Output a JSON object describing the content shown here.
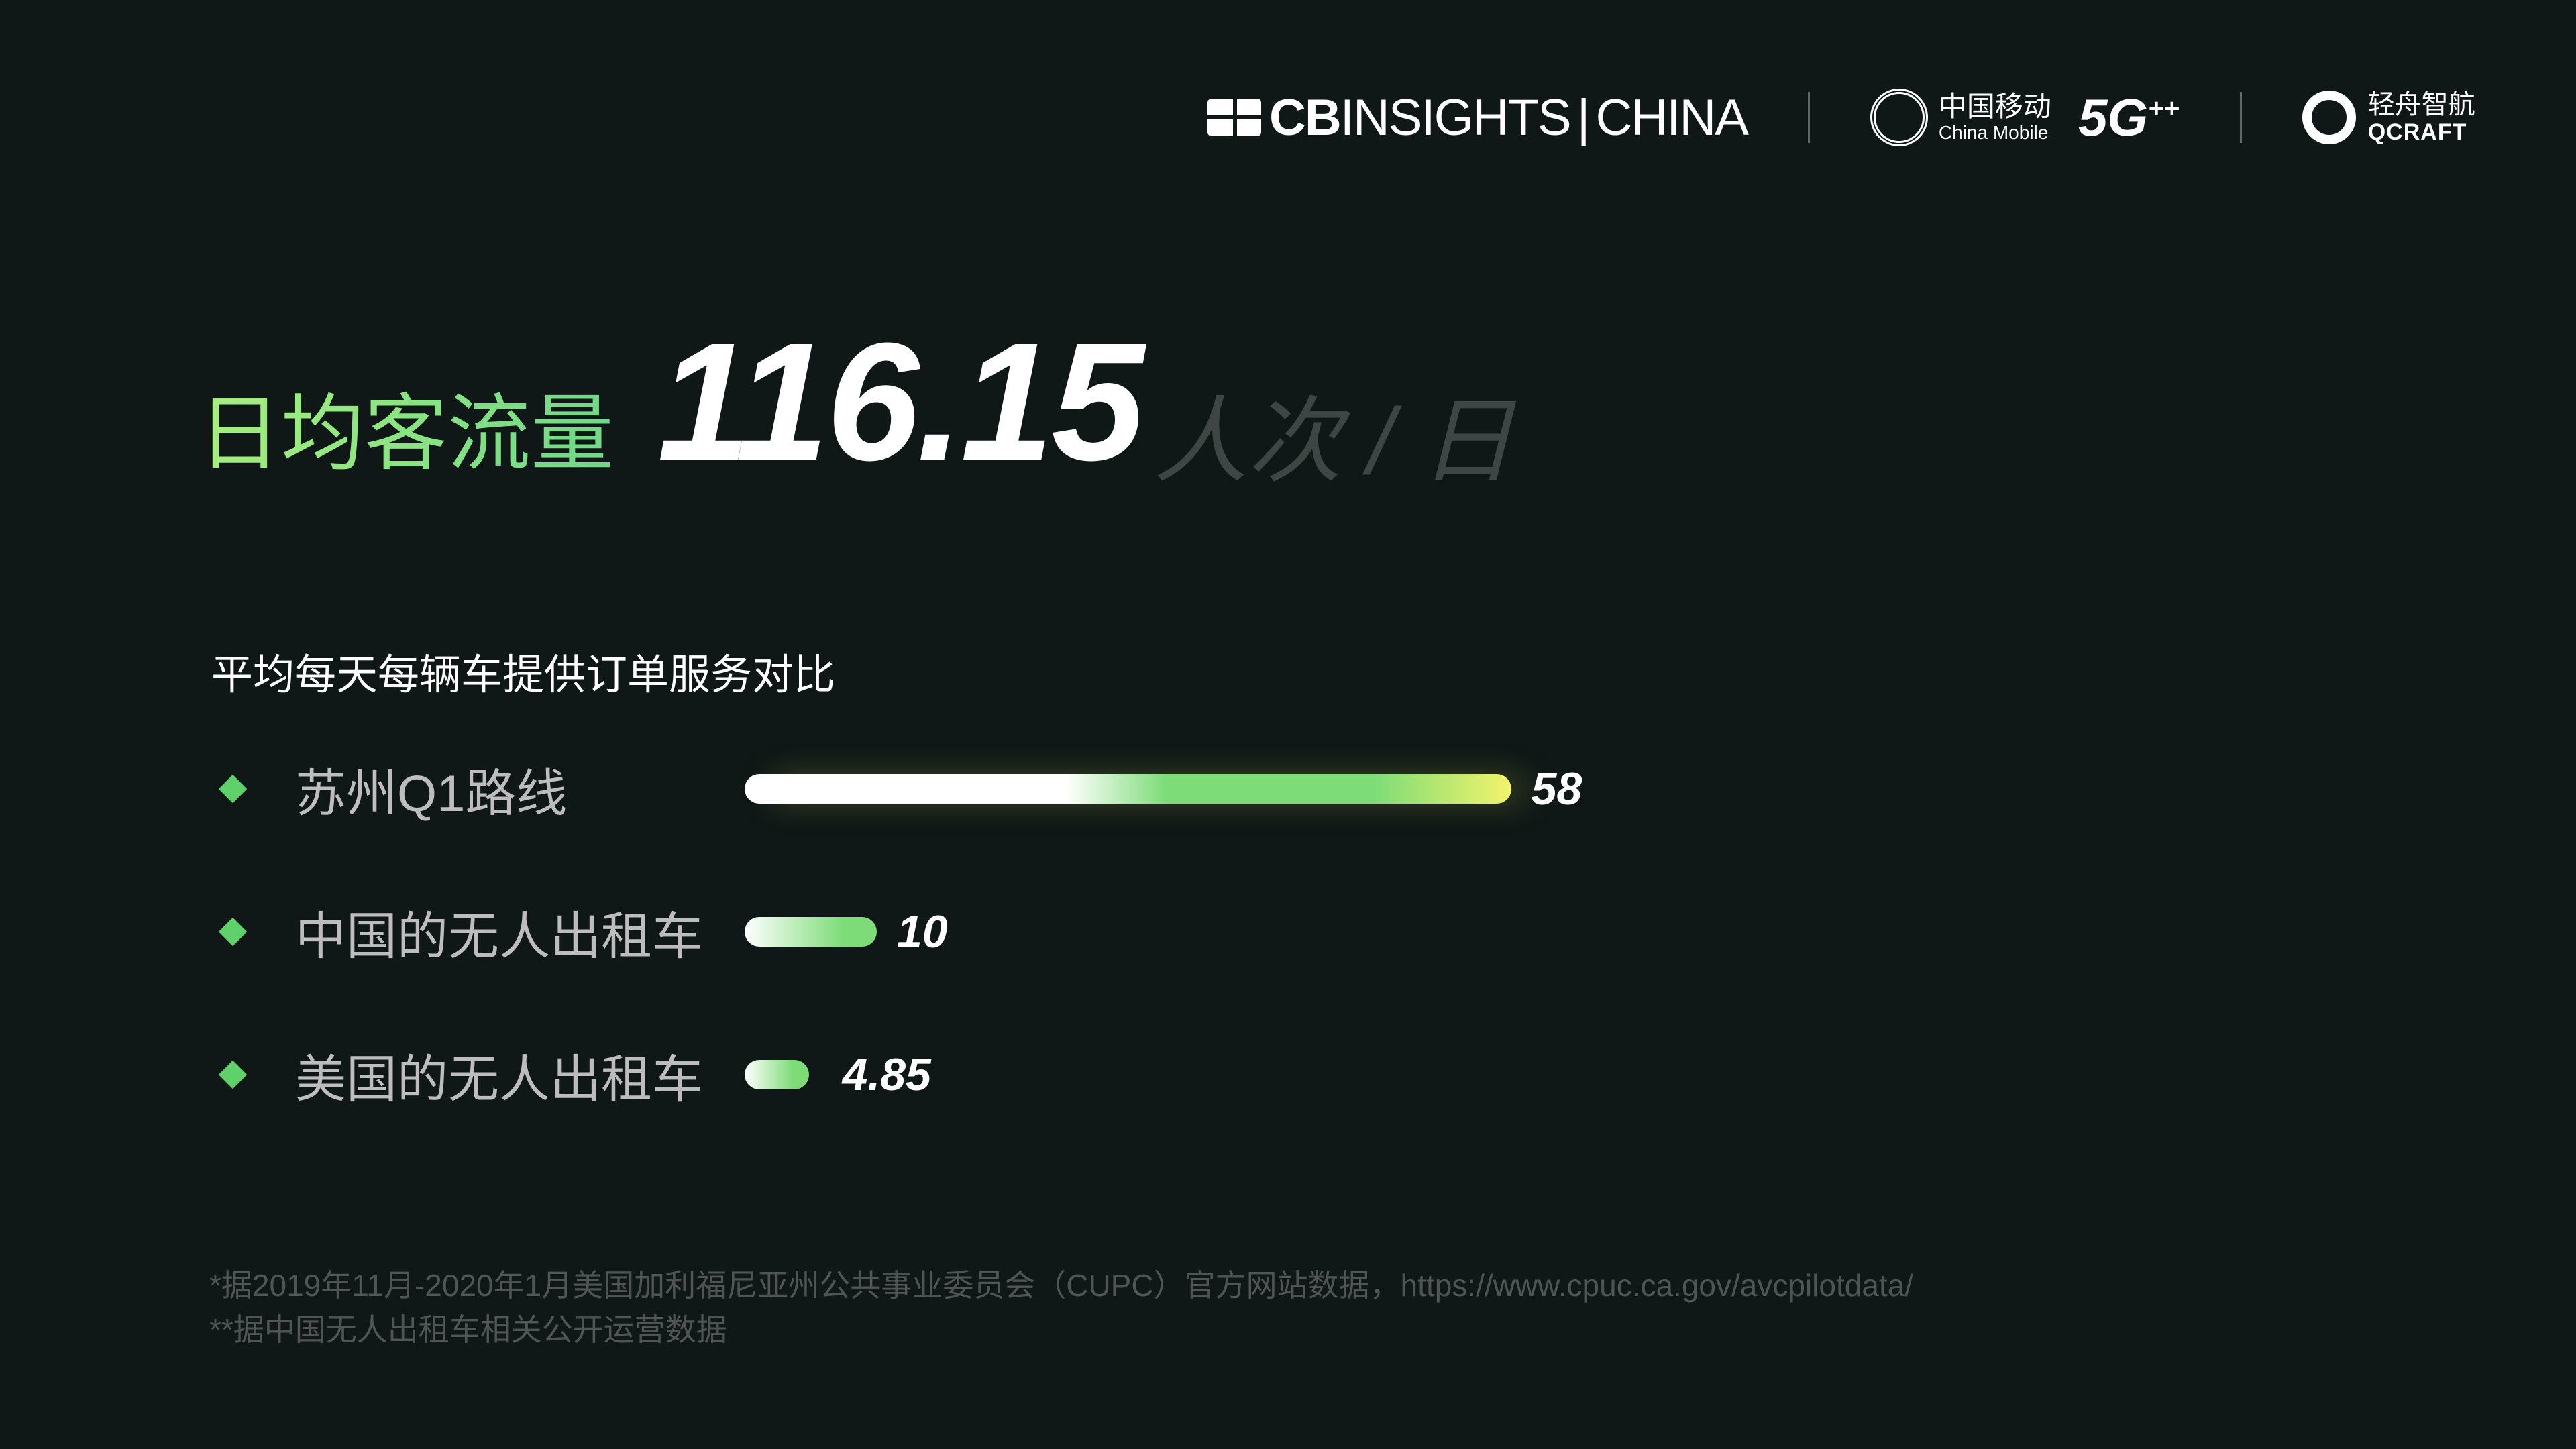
{
  "header": {
    "cb_insights": {
      "bold": "CB",
      "rest": "INSIGHTS",
      "sep": "|",
      "china": "CHINA"
    },
    "china_mobile": {
      "zh": "中国移动",
      "en": "China Mobile",
      "badge": "5G",
      "badge_sup": "++"
    },
    "qcraft": {
      "zh": "轻舟智航",
      "en": "QCRAFT"
    }
  },
  "headline": {
    "label": "日均客流量",
    "value": "116.15",
    "unit": "人次 / 日"
  },
  "comparison": {
    "title": "平均每天每辆车提供订单服务对比",
    "items": [
      {
        "label": "苏州Q1路线",
        "value": 58,
        "display": "58"
      },
      {
        "label": "中国的无人出租车",
        "value": 10,
        "display": "10"
      },
      {
        "label": "美国的无人出租车",
        "value": 4.85,
        "display": "4.85"
      }
    ],
    "colors": {
      "bullet": "#5fd16a",
      "bar_start": "#ffffff",
      "bar_mid": "#7ddc78",
      "bar_end": "#f3f36a"
    }
  },
  "footnotes": [
    "*据2019年11月-2020年1月美国加利福尼亚州公共事业委员会（CUPC）官方网站数据，https://www.cpuc.ca.gov/avcpilotdata/",
    "**据中国无人出租车相关公开运营数据"
  ]
}
